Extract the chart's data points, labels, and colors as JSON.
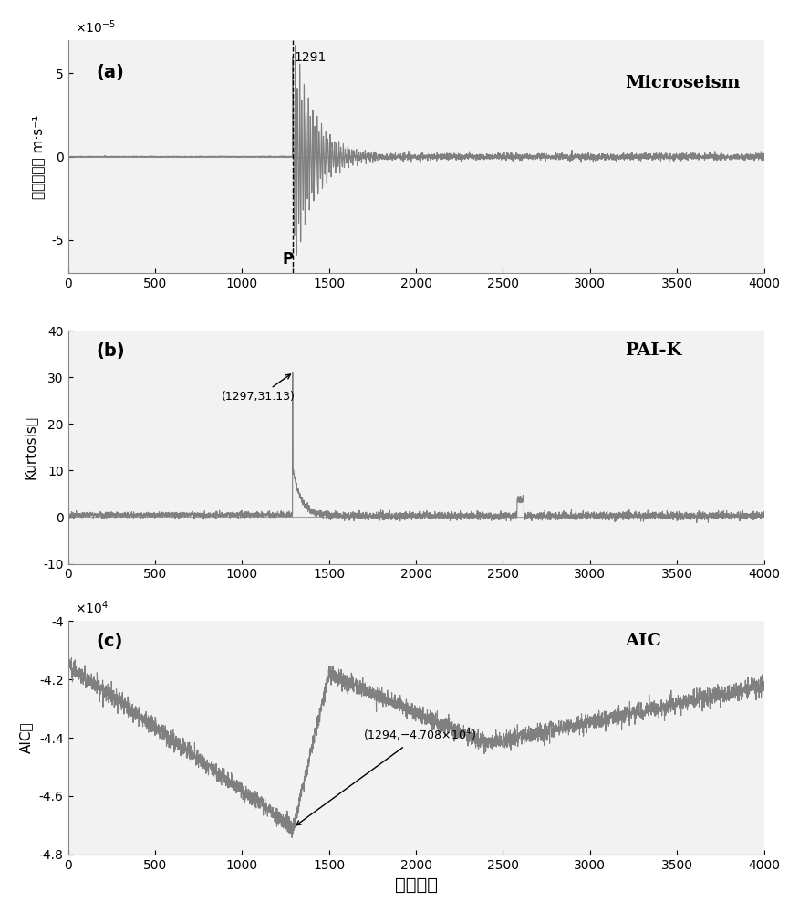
{
  "title_a": "Microseism",
  "title_b": "PAI-K",
  "title_c": "AIC",
  "label_a": "(a)",
  "label_b": "(b)",
  "label_c": "(c)",
  "xlabel": "采样点数",
  "ylabel_a": "速度振幅／ m·s⁻¹",
  "ylabel_b": "Kurtosis值",
  "ylabel_c": "AIC值",
  "xlim": [
    0,
    4000
  ],
  "ylim_a": [
    -7e-05,
    7e-05
  ],
  "ylim_b": [
    -10,
    40
  ],
  "ylim_c": [
    -48000.0,
    -40000.0
  ],
  "xticks": [
    0,
    500,
    1000,
    1500,
    2000,
    2500,
    3000,
    3500,
    4000
  ],
  "xticklabels": [
    "0",
    "500",
    "1000",
    "1500",
    "2000",
    "2500",
    "3000",
    "3500",
    "4000"
  ],
  "p_arrival": 1291,
  "paik_peak_x": 1297,
  "paik_peak_y": 31.13,
  "aic_min_x": 1294,
  "aic_min_y": -47080.0,
  "signal_color": "#808080",
  "line_color_purple": "#9966AA",
  "background": "#f0f0f0",
  "plot_bg": "#f0f0f0"
}
